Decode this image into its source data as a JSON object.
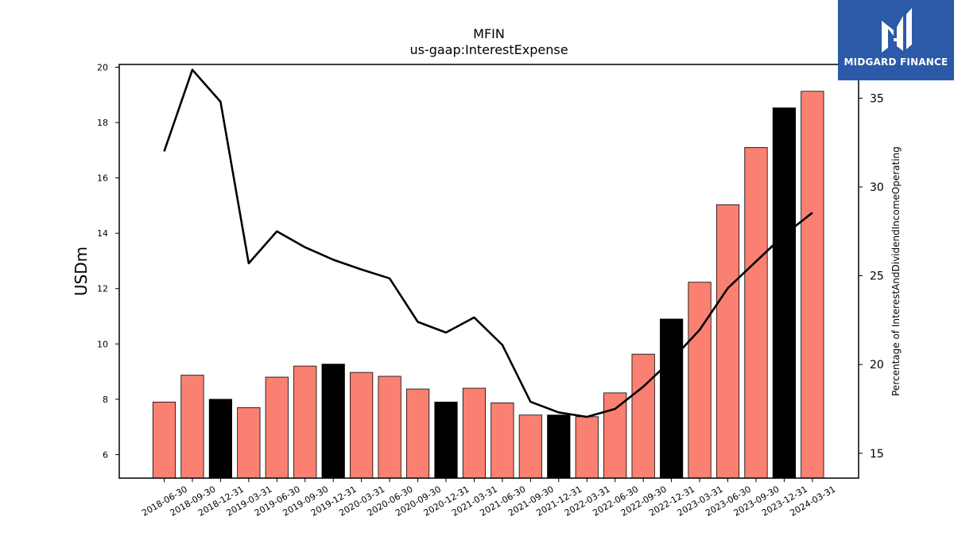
{
  "brand": {
    "name": "MIDGARD FINANCE",
    "logo_icon": "midgard-mi-logo-icon",
    "logo_bg": "#2c5aa8"
  },
  "chart_data": {
    "type": "bar",
    "title": "MFIN",
    "subtitle": "us-gaap:InterestExpense",
    "ylabel": "USDm",
    "y2label": "Percentage of InterestAndDividendIncomeOperating",
    "ylim": [
      5.15,
      20.1
    ],
    "y2lim": [
      13.6,
      36.9
    ],
    "yticks": [
      6,
      8,
      10,
      12,
      14,
      16,
      18,
      20
    ],
    "y2ticks": [
      15,
      20,
      25,
      30,
      35
    ],
    "categories": [
      "2018-06-30",
      "2018-09-30",
      "2018-12-31",
      "2019-03-31",
      "2019-06-30",
      "2019-09-30",
      "2019-12-31",
      "2020-03-31",
      "2020-06-30",
      "2020-09-30",
      "2020-12-31",
      "2021-03-31",
      "2021-06-30",
      "2021-09-30",
      "2021-12-31",
      "2022-03-31",
      "2022-06-30",
      "2022-09-30",
      "2022-12-31",
      "2023-03-31",
      "2023-06-30",
      "2023-09-30",
      "2023-12-31",
      "2024-03-31"
    ],
    "series": [
      {
        "type": "bar",
        "axis": "left",
        "values": [
          7.9,
          8.87,
          8.0,
          7.7,
          8.8,
          9.2,
          9.27,
          8.97,
          8.83,
          8.37,
          7.9,
          8.4,
          7.87,
          7.43,
          7.43,
          7.37,
          8.23,
          9.63,
          10.9,
          12.23,
          15.03,
          17.1,
          18.53,
          19.13
        ],
        "colors": [
          "#fa8072",
          "#fa8072",
          "#000000",
          "#fa8072",
          "#fa8072",
          "#fa8072",
          "#000000",
          "#fa8072",
          "#fa8072",
          "#fa8072",
          "#000000",
          "#fa8072",
          "#fa8072",
          "#fa8072",
          "#000000",
          "#fa8072",
          "#fa8072",
          "#fa8072",
          "#000000",
          "#fa8072",
          "#fa8072",
          "#fa8072",
          "#000000",
          "#fa8072"
        ]
      },
      {
        "type": "line",
        "axis": "right",
        "color": "#000000",
        "values": [
          32.0,
          36.6,
          34.8,
          25.7,
          27.5,
          26.6,
          25.9,
          25.35,
          24.85,
          22.4,
          21.8,
          22.65,
          21.1,
          17.9,
          17.3,
          17.05,
          17.5,
          18.75,
          20.25,
          21.95,
          24.3,
          25.8,
          27.3,
          28.55
        ]
      }
    ],
    "grid": false
  }
}
